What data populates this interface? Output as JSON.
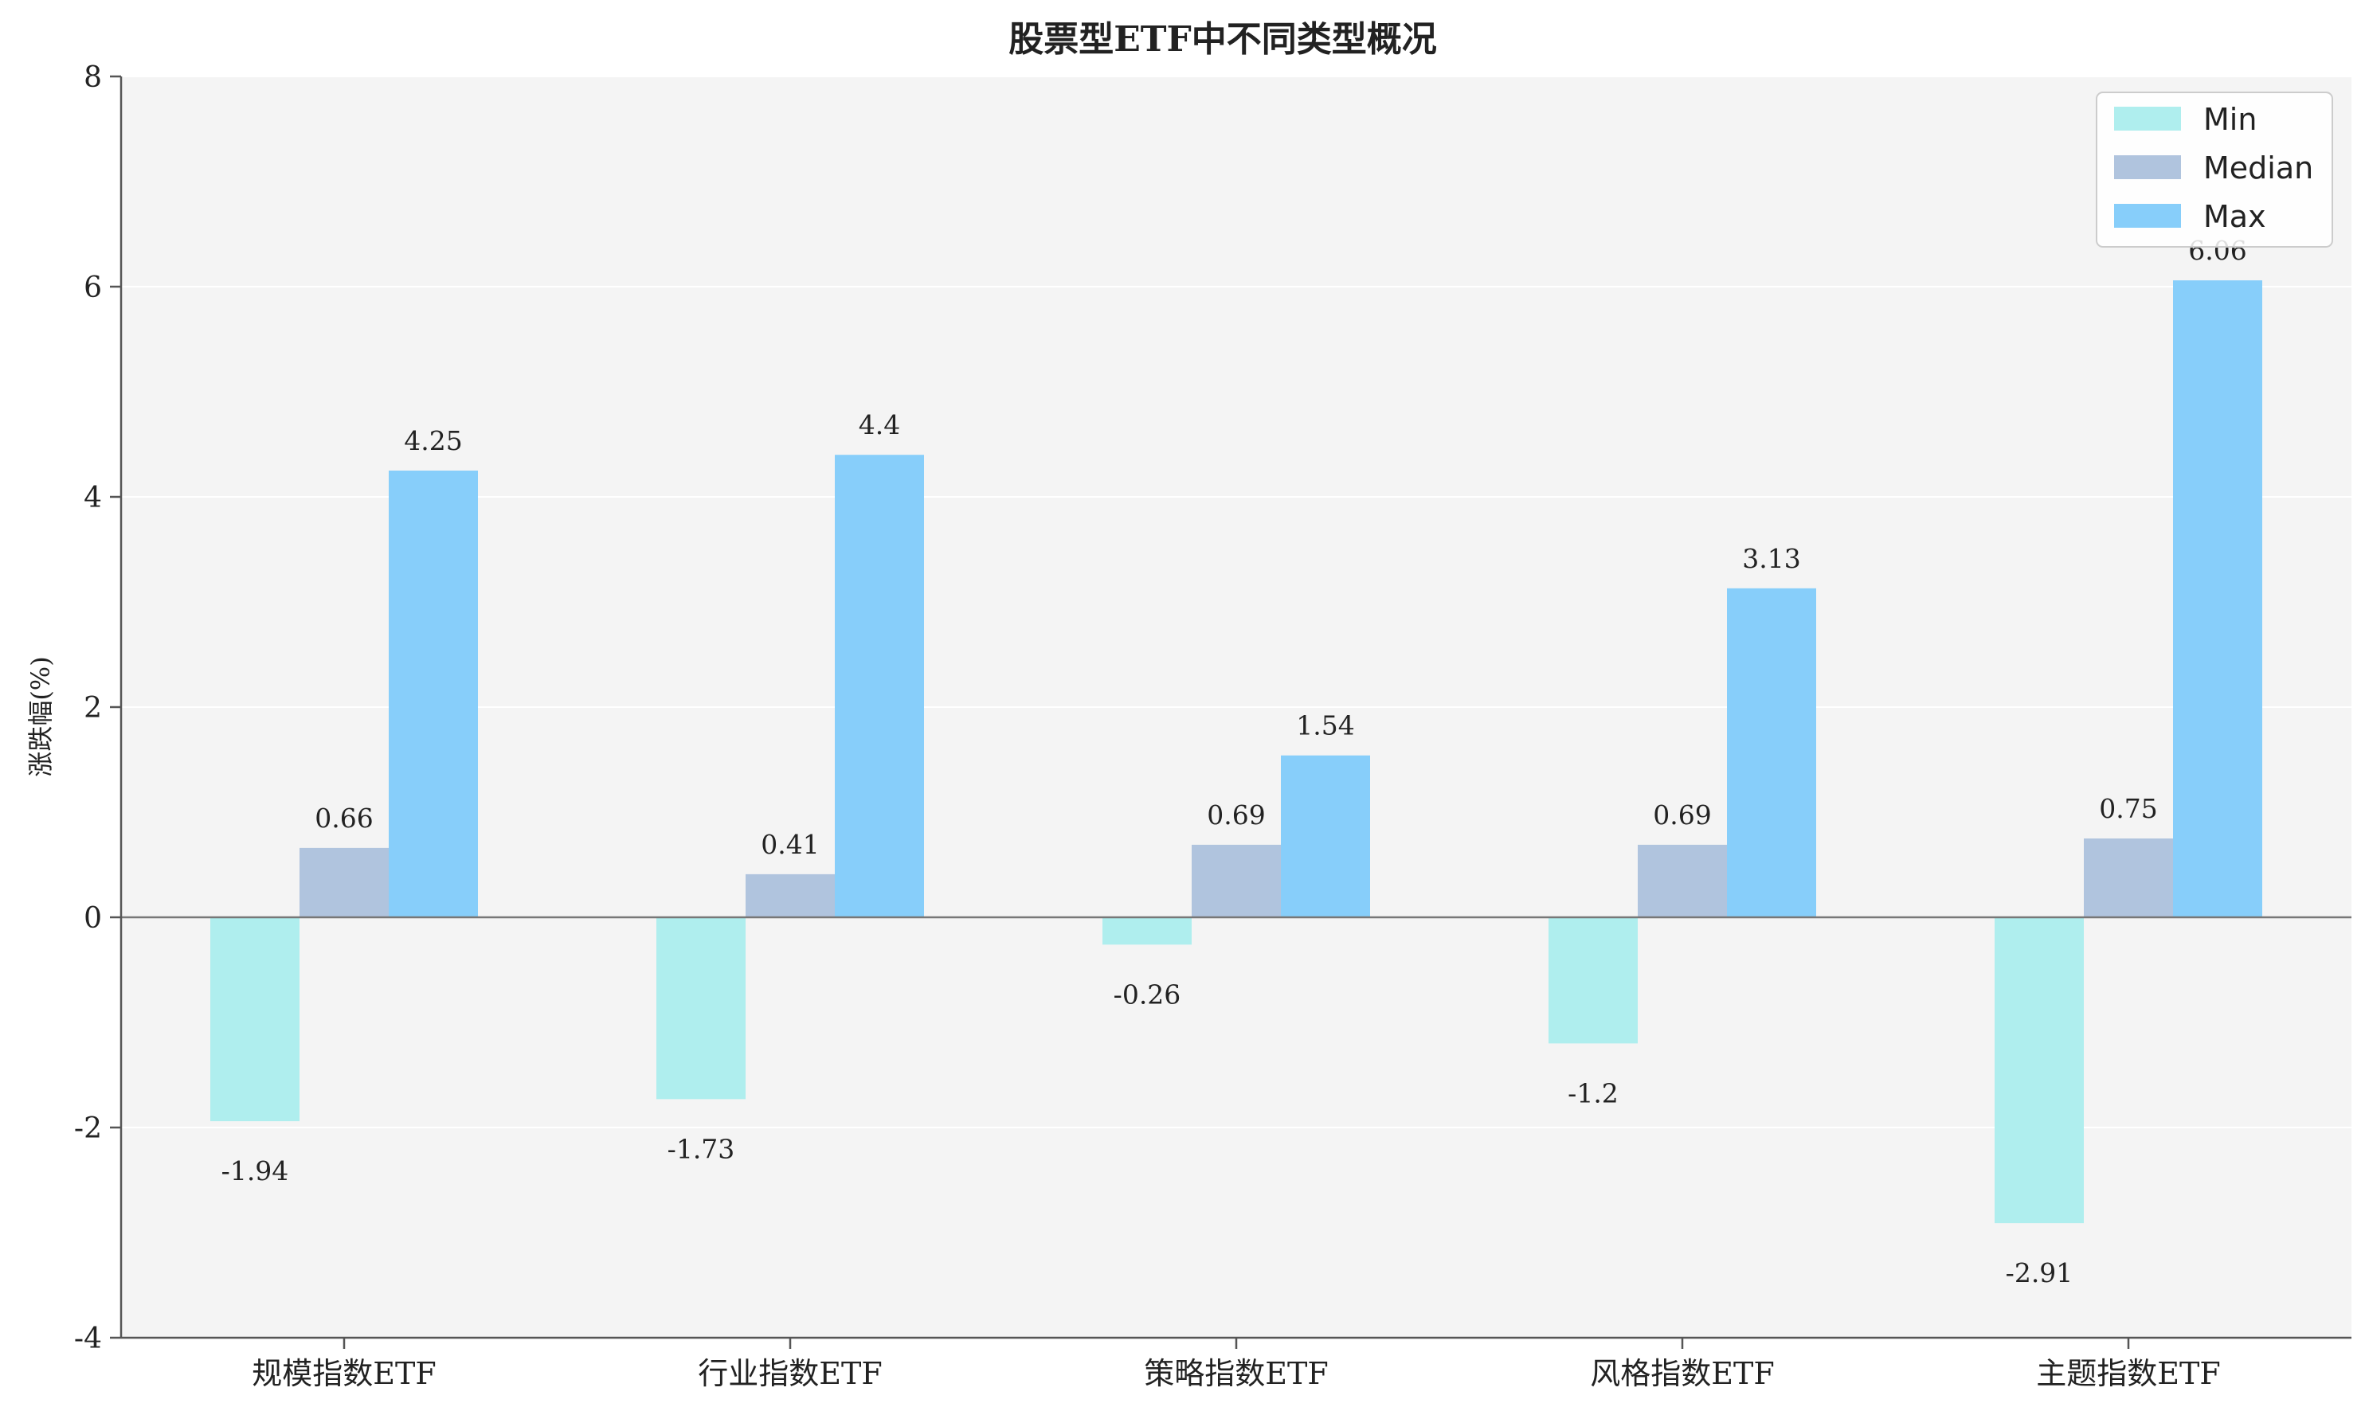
{
  "chart_data": {
    "type": "bar",
    "title": "股票型ETF中不同类型概况",
    "xlabel": "",
    "ylabel": "涨跌幅(%)",
    "ylim": [
      -4,
      8
    ],
    "yticks": [
      -4,
      -2,
      0,
      2,
      4,
      6,
      8
    ],
    "categories": [
      "规模指数ETF",
      "行业指数ETF",
      "策略指数ETF",
      "风格指数ETF",
      "主题指数ETF"
    ],
    "series": [
      {
        "name": "Min",
        "values": [
          -1.94,
          -1.73,
          -0.26,
          -1.2,
          -2.91
        ],
        "labels": [
          "-1.94",
          "-1.73",
          "-0.26",
          "-1.2",
          "-2.91"
        ],
        "color": "#AFEEEE"
      },
      {
        "name": "Median",
        "values": [
          0.66,
          0.41,
          0.69,
          0.69,
          0.75
        ],
        "labels": [
          "0.66",
          "0.41",
          "0.69",
          "0.69",
          "0.75"
        ],
        "color": "#B0C4DE"
      },
      {
        "name": "Max",
        "values": [
          4.25,
          4.4,
          1.54,
          3.13,
          6.06
        ],
        "labels": [
          "4.25",
          "4.4",
          "1.54",
          "3.13",
          "6.06"
        ],
        "color": "#87CEFA"
      }
    ],
    "grid": true,
    "legend_position": "top-right",
    "plot_background": "#F4F4F4",
    "axis_color": "#555555",
    "gridline_color": "#FFFFFF"
  }
}
